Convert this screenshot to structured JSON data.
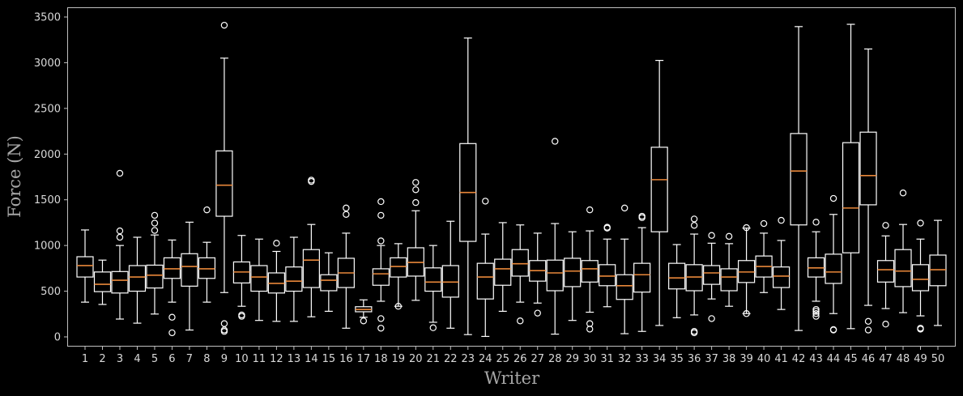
{
  "chart_data": {
    "type": "boxplot",
    "title": "",
    "xlabel": "Writer",
    "ylabel": "Force (N)",
    "ylim": [
      -100,
      3600
    ],
    "yticks": [
      0,
      500,
      1000,
      1500,
      2000,
      2500,
      3000,
      3500
    ],
    "grid": false,
    "legend": null,
    "colors": {
      "background": "#000000",
      "box": "#ffffff",
      "median": "#e8873a",
      "axis": "#bfbfbf",
      "tick_text": "#d9d9d9",
      "label_text": "#a6a6a6"
    },
    "categories": [
      "1",
      "2",
      "3",
      "4",
      "5",
      "6",
      "7",
      "8",
      "9",
      "10",
      "11",
      "12",
      "13",
      "14",
      "15",
      "16",
      "17",
      "18",
      "19",
      "20",
      "21",
      "22",
      "23",
      "24",
      "25",
      "26",
      "27",
      "28",
      "29",
      "30",
      "31",
      "32",
      "33",
      "34",
      "35",
      "36",
      "37",
      "38",
      "39",
      "40",
      "41",
      "42",
      "43",
      "44",
      "45",
      "46",
      "47",
      "48",
      "49",
      "50"
    ],
    "boxes": [
      {
        "writer": 1,
        "whislo": 380,
        "q1": 655,
        "med": 780,
        "q3": 877,
        "whishi": 1170,
        "fliers": []
      },
      {
        "writer": 2,
        "whislo": 355,
        "q1": 495,
        "med": 575,
        "q3": 710,
        "whishi": 840,
        "fliers": []
      },
      {
        "writer": 3,
        "whislo": 195,
        "q1": 480,
        "med": 620,
        "q3": 715,
        "whishi": 1000,
        "fliers": [
          1790,
          1160,
          1090
        ]
      },
      {
        "writer": 4,
        "whislo": 150,
        "q1": 500,
        "med": 655,
        "q3": 780,
        "whishi": 1090,
        "fliers": []
      },
      {
        "writer": 5,
        "whislo": 250,
        "q1": 535,
        "med": 675,
        "q3": 785,
        "whishi": 1115,
        "fliers": [
          1330,
          1245,
          1165
        ]
      },
      {
        "writer": 6,
        "whislo": 380,
        "q1": 640,
        "med": 745,
        "q3": 865,
        "whishi": 1060,
        "fliers": [
          215,
          45
        ]
      },
      {
        "writer": 7,
        "whislo": 75,
        "q1": 555,
        "med": 770,
        "q3": 910,
        "whishi": 1255,
        "fliers": []
      },
      {
        "writer": 8,
        "whislo": 380,
        "q1": 640,
        "med": 745,
        "q3": 865,
        "whishi": 1035,
        "fliers": [
          1390
        ]
      },
      {
        "writer": 9,
        "whislo": 485,
        "q1": 1320,
        "med": 1660,
        "q3": 2035,
        "whishi": 3050,
        "fliers": [
          3410,
          145,
          75,
          60
        ]
      },
      {
        "writer": 10,
        "whislo": 335,
        "q1": 590,
        "med": 710,
        "q3": 820,
        "whishi": 1110,
        "fliers": [
          240,
          225
        ]
      },
      {
        "writer": 11,
        "whislo": 180,
        "q1": 500,
        "med": 655,
        "q3": 780,
        "whishi": 1070,
        "fliers": []
      },
      {
        "writer": 12,
        "whislo": 170,
        "q1": 480,
        "med": 585,
        "q3": 700,
        "whishi": 935,
        "fliers": [
          1025
        ]
      },
      {
        "writer": 13,
        "whislo": 170,
        "q1": 500,
        "med": 610,
        "q3": 765,
        "whishi": 1090,
        "fliers": []
      },
      {
        "writer": 14,
        "whislo": 220,
        "q1": 540,
        "med": 840,
        "q3": 955,
        "whishi": 1230,
        "fliers": [
          1715,
          1700
        ]
      },
      {
        "writer": 15,
        "whislo": 280,
        "q1": 505,
        "med": 620,
        "q3": 680,
        "whishi": 920,
        "fliers": []
      },
      {
        "writer": 16,
        "whislo": 95,
        "q1": 540,
        "med": 700,
        "q3": 860,
        "whishi": 1135,
        "fliers": [
          1410,
          1340
        ]
      },
      {
        "writer": 17,
        "whislo": 215,
        "q1": 275,
        "med": 300,
        "q3": 330,
        "whishi": 405,
        "fliers": [
          175
        ]
      },
      {
        "writer": 18,
        "whislo": 390,
        "q1": 565,
        "med": 690,
        "q3": 745,
        "whishi": 1000,
        "fliers": [
          1480,
          1330,
          1050,
          200,
          95
        ]
      },
      {
        "writer": 19,
        "whislo": 335,
        "q1": 655,
        "med": 770,
        "q3": 865,
        "whishi": 1020,
        "fliers": [
          335
        ]
      },
      {
        "writer": 20,
        "whislo": 400,
        "q1": 665,
        "med": 815,
        "q3": 975,
        "whishi": 1380,
        "fliers": [
          1690,
          1610,
          1470
        ]
      },
      {
        "writer": 21,
        "whislo": 160,
        "q1": 500,
        "med": 600,
        "q3": 755,
        "whishi": 1000,
        "fliers": [
          100
        ]
      },
      {
        "writer": 22,
        "whislo": 95,
        "q1": 435,
        "med": 600,
        "q3": 780,
        "whishi": 1265,
        "fliers": []
      },
      {
        "writer": 23,
        "whislo": 25,
        "q1": 1045,
        "med": 1580,
        "q3": 2115,
        "whishi": 3270,
        "fliers": []
      },
      {
        "writer": 24,
        "whislo": 5,
        "q1": 415,
        "med": 655,
        "q3": 805,
        "whishi": 1125,
        "fliers": [
          1485
        ]
      },
      {
        "writer": 25,
        "whislo": 280,
        "q1": 565,
        "med": 745,
        "q3": 850,
        "whishi": 1250,
        "fliers": []
      },
      {
        "writer": 26,
        "whislo": 380,
        "q1": 665,
        "med": 800,
        "q3": 955,
        "whishi": 1225,
        "fliers": [
          175
        ]
      },
      {
        "writer": 27,
        "whislo": 370,
        "q1": 610,
        "med": 725,
        "q3": 835,
        "whishi": 1135,
        "fliers": [
          260
        ]
      },
      {
        "writer": 28,
        "whislo": 30,
        "q1": 505,
        "med": 700,
        "q3": 840,
        "whishi": 1240,
        "fliers": [
          2140
        ]
      },
      {
        "writer": 29,
        "whislo": 180,
        "q1": 550,
        "med": 720,
        "q3": 860,
        "whishi": 1150,
        "fliers": []
      },
      {
        "writer": 30,
        "whislo": 270,
        "q1": 600,
        "med": 745,
        "q3": 835,
        "whishi": 1160,
        "fliers": [
          1390,
          145,
          85
        ]
      },
      {
        "writer": 31,
        "whislo": 330,
        "q1": 560,
        "med": 665,
        "q3": 790,
        "whishi": 1070,
        "fliers": [
          1200,
          1190
        ]
      },
      {
        "writer": 32,
        "whislo": 35,
        "q1": 410,
        "med": 560,
        "q3": 680,
        "whishi": 1070,
        "fliers": [
          1410
        ]
      },
      {
        "writer": 33,
        "whislo": 60,
        "q1": 490,
        "med": 680,
        "q3": 805,
        "whishi": 1195,
        "fliers": [
          1320,
          1305
        ]
      },
      {
        "writer": 34,
        "whislo": 125,
        "q1": 1150,
        "med": 1720,
        "q3": 2075,
        "whishi": 3025,
        "fliers": []
      },
      {
        "writer": 35,
        "whislo": 210,
        "q1": 525,
        "med": 645,
        "q3": 805,
        "whishi": 1010,
        "fliers": []
      },
      {
        "writer": 36,
        "whislo": 240,
        "q1": 505,
        "med": 655,
        "q3": 790,
        "whishi": 1125,
        "fliers": [
          1290,
          1220,
          60,
          45
        ]
      },
      {
        "writer": 37,
        "whislo": 415,
        "q1": 575,
        "med": 700,
        "q3": 780,
        "whishi": 1025,
        "fliers": [
          1110,
          200
        ]
      },
      {
        "writer": 38,
        "whislo": 335,
        "q1": 505,
        "med": 655,
        "q3": 745,
        "whishi": 1020,
        "fliers": [
          1100
        ]
      },
      {
        "writer": 39,
        "whislo": 255,
        "q1": 595,
        "med": 710,
        "q3": 835,
        "whishi": 1190,
        "fliers": [
          1195,
          255
        ]
      },
      {
        "writer": 40,
        "whislo": 485,
        "q1": 655,
        "med": 770,
        "q3": 885,
        "whishi": 1135,
        "fliers": [
          1240
        ]
      },
      {
        "writer": 41,
        "whislo": 300,
        "q1": 540,
        "med": 665,
        "q3": 765,
        "whishi": 1055,
        "fliers": [
          1275
        ]
      },
      {
        "writer": 42,
        "whislo": 70,
        "q1": 1225,
        "med": 1815,
        "q3": 2225,
        "whishi": 3395,
        "fliers": []
      },
      {
        "writer": 43,
        "whislo": 390,
        "q1": 655,
        "med": 755,
        "q3": 865,
        "whishi": 1150,
        "fliers": [
          1255,
          300,
          280,
          255,
          225
        ]
      },
      {
        "writer": 44,
        "whislo": 255,
        "q1": 585,
        "med": 710,
        "q3": 905,
        "whishi": 1340,
        "fliers": [
          1515,
          80,
          75
        ]
      },
      {
        "writer": 45,
        "whislo": 90,
        "q1": 920,
        "med": 1410,
        "q3": 2125,
        "whishi": 3420,
        "fliers": []
      },
      {
        "writer": 46,
        "whislo": 345,
        "q1": 1445,
        "med": 1765,
        "q3": 2240,
        "whishi": 3150,
        "fliers": [
          170,
          75
        ]
      },
      {
        "writer": 47,
        "whislo": 310,
        "q1": 600,
        "med": 735,
        "q3": 835,
        "whishi": 1105,
        "fliers": [
          1220,
          140
        ]
      },
      {
        "writer": 48,
        "whislo": 265,
        "q1": 550,
        "med": 720,
        "q3": 955,
        "whishi": 1230,
        "fliers": [
          1575
        ]
      },
      {
        "writer": 49,
        "whislo": 230,
        "q1": 505,
        "med": 630,
        "q3": 790,
        "whishi": 1070,
        "fliers": [
          1245,
          95,
          85
        ]
      },
      {
        "writer": 50,
        "whislo": 125,
        "q1": 560,
        "med": 735,
        "q3": 895,
        "whishi": 1275,
        "fliers": []
      }
    ]
  }
}
